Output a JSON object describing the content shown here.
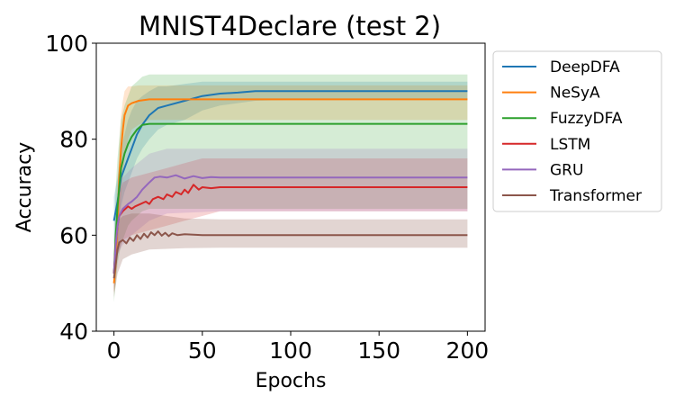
{
  "chart_data": {
    "type": "line",
    "title": "MNIST4Declare (test 2)",
    "xlabel": "Epochs",
    "ylabel": "Accuracy",
    "xlim": [
      -10,
      210
    ],
    "ylim": [
      40,
      100
    ],
    "xticks": [
      0,
      50,
      100,
      150,
      200
    ],
    "yticks": [
      40,
      60,
      80,
      100
    ],
    "legend_position": "outside-right-top",
    "grid": false,
    "series": [
      {
        "name": "DeepDFA",
        "color": "#1f77b4",
        "band_opacity": 0.2,
        "points": [
          [
            0,
            63
          ],
          [
            2,
            67
          ],
          [
            4,
            72
          ],
          [
            6,
            74
          ],
          [
            8,
            76
          ],
          [
            10,
            78
          ],
          [
            13,
            81
          ],
          [
            16,
            83
          ],
          [
            20,
            85
          ],
          [
            25,
            86.5
          ],
          [
            30,
            87
          ],
          [
            40,
            88
          ],
          [
            50,
            89
          ],
          [
            60,
            89.5
          ],
          [
            70,
            89.7
          ],
          [
            80,
            90
          ],
          [
            100,
            90
          ],
          [
            150,
            90
          ],
          [
            200,
            90
          ]
        ],
        "band": [
          [
            0,
            58,
            68
          ],
          [
            2,
            62,
            72
          ],
          [
            4,
            66,
            78
          ],
          [
            6,
            69,
            81
          ],
          [
            8,
            71,
            84
          ],
          [
            10,
            73,
            86
          ],
          [
            13,
            76,
            88
          ],
          [
            16,
            78,
            89
          ],
          [
            20,
            80,
            90
          ],
          [
            25,
            82,
            91
          ],
          [
            30,
            83,
            91
          ],
          [
            40,
            84,
            91.5
          ],
          [
            50,
            86,
            92
          ],
          [
            60,
            87,
            92
          ],
          [
            80,
            88,
            92
          ],
          [
            100,
            88.2,
            92
          ],
          [
            150,
            88.2,
            92
          ],
          [
            200,
            88.2,
            92
          ]
        ]
      },
      {
        "name": "NeSyA",
        "color": "#ff7f0e",
        "band_opacity": 0.2,
        "points": [
          [
            0,
            50
          ],
          [
            1,
            54
          ],
          [
            2,
            63
          ],
          [
            3,
            72
          ],
          [
            4,
            78
          ],
          [
            5,
            82
          ],
          [
            6,
            85
          ],
          [
            8,
            87
          ],
          [
            10,
            87.5
          ],
          [
            14,
            88
          ],
          [
            20,
            88.3
          ],
          [
            40,
            88.3
          ],
          [
            100,
            88.3
          ],
          [
            200,
            88.3
          ]
        ],
        "band": [
          [
            0,
            48,
            52
          ],
          [
            1,
            50,
            58
          ],
          [
            2,
            56,
            70
          ],
          [
            3,
            63,
            79
          ],
          [
            4,
            68,
            85
          ],
          [
            5,
            72,
            88
          ],
          [
            6,
            76,
            90
          ],
          [
            8,
            80,
            91
          ],
          [
            10,
            82,
            91
          ],
          [
            14,
            83,
            91.2
          ],
          [
            20,
            84,
            91.2
          ],
          [
            200,
            84,
            91.2
          ]
        ]
      },
      {
        "name": "FuzzyDFA",
        "color": "#2ca02c",
        "band_opacity": 0.2,
        "points": [
          [
            0,
            52
          ],
          [
            1,
            60
          ],
          [
            2,
            66
          ],
          [
            3,
            70
          ],
          [
            4,
            74
          ],
          [
            6,
            77
          ],
          [
            8,
            79
          ],
          [
            10,
            80.5
          ],
          [
            13,
            82
          ],
          [
            16,
            83
          ],
          [
            20,
            83.2
          ],
          [
            200,
            83.2
          ]
        ],
        "band": [
          [
            0,
            46,
            58
          ],
          [
            1,
            50,
            70
          ],
          [
            2,
            54,
            76
          ],
          [
            3,
            56,
            80
          ],
          [
            4,
            58,
            84
          ],
          [
            6,
            60,
            87
          ],
          [
            8,
            62,
            89
          ],
          [
            10,
            63,
            91
          ],
          [
            13,
            64,
            92
          ],
          [
            16,
            65,
            93
          ],
          [
            20,
            65.5,
            93.5
          ],
          [
            200,
            65.5,
            93.5
          ]
        ]
      },
      {
        "name": "LSTM",
        "color": "#d62728",
        "band_opacity": 0.2,
        "points": [
          [
            0,
            52
          ],
          [
            1,
            58
          ],
          [
            2,
            62
          ],
          [
            3,
            64
          ],
          [
            5,
            65
          ],
          [
            8,
            66
          ],
          [
            10,
            65.5
          ],
          [
            12,
            66
          ],
          [
            15,
            66.5
          ],
          [
            18,
            67
          ],
          [
            20,
            66.5
          ],
          [
            22,
            67.5
          ],
          [
            25,
            68
          ],
          [
            28,
            67.5
          ],
          [
            30,
            68.5
          ],
          [
            33,
            68
          ],
          [
            35,
            69
          ],
          [
            38,
            68.5
          ],
          [
            40,
            69.5
          ],
          [
            42,
            68.8
          ],
          [
            45,
            70.5
          ],
          [
            48,
            69.5
          ],
          [
            50,
            70
          ],
          [
            55,
            69.8
          ],
          [
            60,
            70
          ],
          [
            70,
            70
          ],
          [
            100,
            70
          ],
          [
            200,
            70
          ]
        ],
        "band": [
          [
            0,
            48,
            56
          ],
          [
            2,
            56,
            68
          ],
          [
            5,
            59,
            71
          ],
          [
            10,
            60,
            72
          ],
          [
            20,
            61,
            73
          ],
          [
            30,
            62,
            74
          ],
          [
            40,
            63,
            75
          ],
          [
            50,
            64,
            76
          ],
          [
            60,
            65,
            76
          ],
          [
            200,
            65,
            76
          ]
        ]
      },
      {
        "name": "GRU",
        "color": "#9467bd",
        "band_opacity": 0.2,
        "points": [
          [
            0,
            52
          ],
          [
            1,
            58
          ],
          [
            2,
            62
          ],
          [
            3,
            64
          ],
          [
            5,
            65.5
          ],
          [
            8,
            66.5
          ],
          [
            10,
            67
          ],
          [
            13,
            68
          ],
          [
            16,
            69.5
          ],
          [
            20,
            71
          ],
          [
            23,
            72
          ],
          [
            26,
            72.2
          ],
          [
            30,
            72
          ],
          [
            35,
            72.5
          ],
          [
            40,
            71.8
          ],
          [
            45,
            72.3
          ],
          [
            50,
            71.9
          ],
          [
            55,
            72.1
          ],
          [
            60,
            72
          ],
          [
            100,
            72
          ],
          [
            200,
            72
          ]
        ],
        "band": [
          [
            0,
            48,
            56
          ],
          [
            2,
            56,
            68
          ],
          [
            5,
            58,
            72
          ],
          [
            10,
            60,
            74
          ],
          [
            20,
            63,
            77
          ],
          [
            30,
            64.5,
            78
          ],
          [
            60,
            65,
            78
          ],
          [
            200,
            65,
            78
          ]
        ]
      },
      {
        "name": "Transformer",
        "color": "#8c564b",
        "band_opacity": 0.25,
        "points": [
          [
            0,
            51
          ],
          [
            1,
            54
          ],
          [
            2,
            57
          ],
          [
            3,
            58.5
          ],
          [
            5,
            59
          ],
          [
            7,
            58.3
          ],
          [
            9,
            59.5
          ],
          [
            11,
            58.8
          ],
          [
            13,
            60
          ],
          [
            15,
            59.2
          ],
          [
            17,
            60.3
          ],
          [
            19,
            59.5
          ],
          [
            21,
            60.6
          ],
          [
            23,
            60
          ],
          [
            25,
            60.8
          ],
          [
            27,
            59.9
          ],
          [
            29,
            60.5
          ],
          [
            31,
            59.8
          ],
          [
            33,
            60.4
          ],
          [
            36,
            60
          ],
          [
            40,
            60.2
          ],
          [
            50,
            60
          ],
          [
            60,
            60
          ],
          [
            200,
            60
          ]
        ],
        "band": [
          [
            0,
            47,
            55
          ],
          [
            2,
            52,
            63
          ],
          [
            5,
            55,
            64
          ],
          [
            10,
            56,
            64.5
          ],
          [
            20,
            57,
            64.5
          ],
          [
            40,
            57.3,
            63.5
          ],
          [
            60,
            57.4,
            63.3
          ],
          [
            200,
            57.4,
            63.3
          ]
        ]
      }
    ]
  }
}
